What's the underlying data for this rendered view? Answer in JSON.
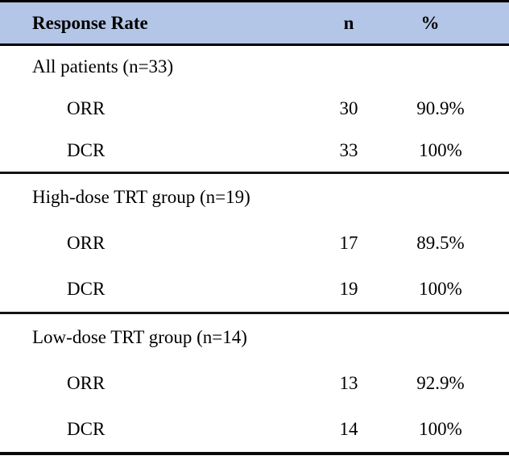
{
  "table": {
    "header_bg": "#b4c6e7",
    "border_color": "#000000",
    "header": {
      "label": "Response Rate",
      "n": "n",
      "pct": "%"
    },
    "sections": [
      {
        "label": "All patients (n=33)",
        "rows": [
          {
            "name": "ORR",
            "n": "30",
            "pct": "90.9%"
          },
          {
            "name": "DCR",
            "n": "33",
            "pct": "100%"
          }
        ]
      },
      {
        "label": "High-dose TRT group (n=19)",
        "rows": [
          {
            "name": "ORR",
            "n": "17",
            "pct": "89.5%"
          },
          {
            "name": "DCR",
            "n": "19",
            "pct": "100%"
          }
        ]
      },
      {
        "label": "Low-dose TRT group (n=14)",
        "rows": [
          {
            "name": "ORR",
            "n": "13",
            "pct": "92.9%"
          },
          {
            "name": "DCR",
            "n": "14",
            "pct": "100%"
          }
        ]
      }
    ]
  }
}
